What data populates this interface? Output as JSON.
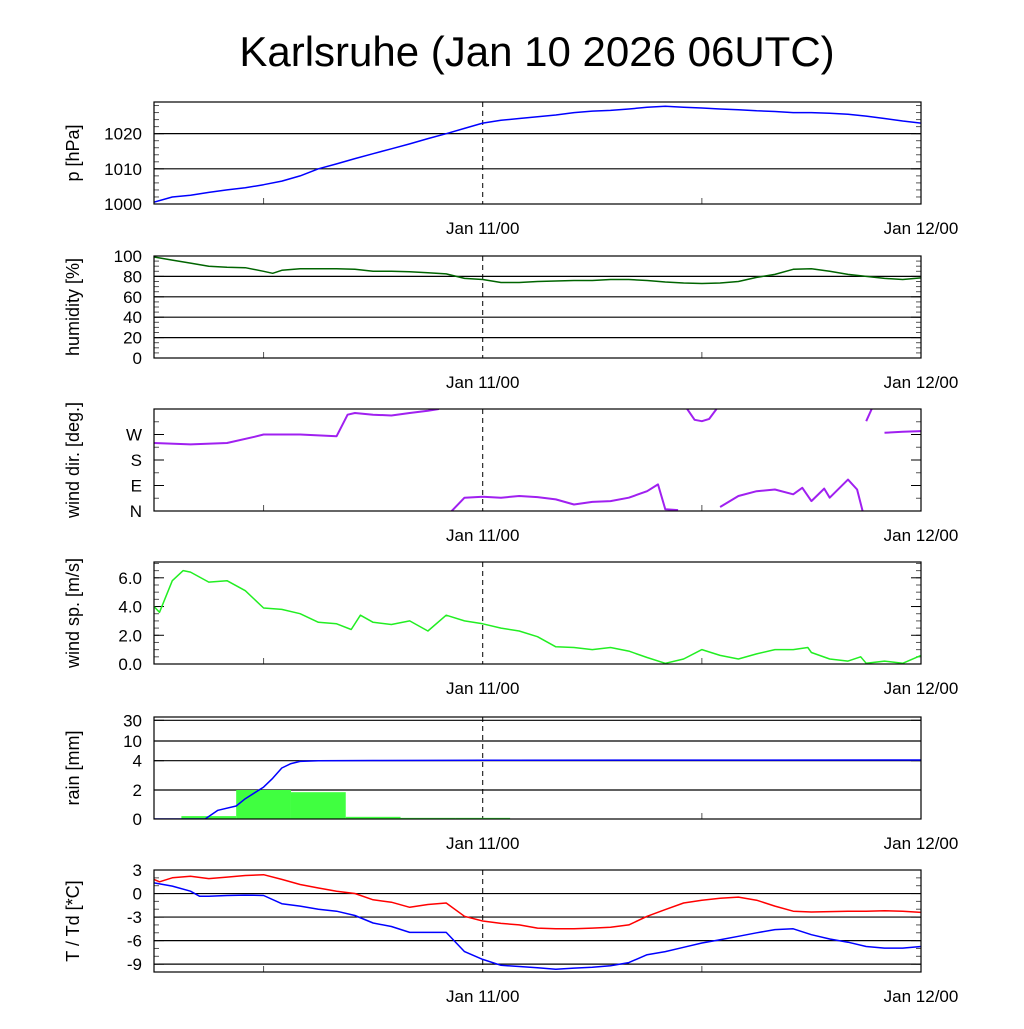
{
  "title": "Karlsruhe (Jan 10 2026 06UTC)",
  "x_axis": {
    "unit": "hours since Jan 10 06UTC",
    "range": [
      0,
      42
    ],
    "labels": [
      {
        "hour": 18,
        "text": "Jan 11/00"
      },
      {
        "hour": 42,
        "text": "Jan 12/00"
      }
    ],
    "minor_hours": [
      6,
      30
    ],
    "dashed_marker_hour": 18
  },
  "chart_data": [
    {
      "id": "pressure",
      "type": "line",
      "ylabel": "p [hPa]",
      "ylim": [
        1000,
        1029
      ],
      "yticks": [
        {
          "v": 1000,
          "t": "1000"
        },
        {
          "v": 1010,
          "t": "1010"
        },
        {
          "v": 1020,
          "t": "1020"
        }
      ],
      "grid": [
        1010,
        1020
      ],
      "minor_step": 2,
      "series": [
        {
          "name": "pressure",
          "color": "#0000ff",
          "x": [
            0,
            1,
            2,
            3,
            4,
            5,
            6,
            7,
            8,
            9,
            10,
            11,
            12,
            13,
            14,
            15,
            16,
            17,
            18,
            19,
            20,
            21,
            22,
            23,
            24,
            25,
            26,
            27,
            28,
            29,
            30,
            31,
            32,
            33,
            34,
            35,
            36,
            37,
            38,
            39,
            40,
            41,
            42
          ],
          "y": [
            1000.5,
            1002,
            1002.5,
            1003.3,
            1004,
            1004.6,
            1005.5,
            1006.5,
            1008,
            1010,
            1011.4,
            1012.9,
            1014.3,
            1015.7,
            1017.1,
            1018.6,
            1020,
            1021.5,
            1023,
            1023.8,
            1024.3,
            1024.8,
            1025.3,
            1026,
            1026.4,
            1026.6,
            1027,
            1027.5,
            1027.8,
            1027.5,
            1027.3,
            1027,
            1026.8,
            1026.5,
            1026.3,
            1026,
            1026,
            1025.8,
            1025.5,
            1025,
            1024.3,
            1023.6,
            1023
          ]
        }
      ]
    },
    {
      "id": "humidity",
      "type": "line",
      "ylabel": "humidity [%]",
      "ylim": [
        0,
        100
      ],
      "yticks": [
        {
          "v": 0,
          "t": "0"
        },
        {
          "v": 20,
          "t": "20"
        },
        {
          "v": 40,
          "t": "40"
        },
        {
          "v": 60,
          "t": "60"
        },
        {
          "v": 80,
          "t": "80"
        },
        {
          "v": 100,
          "t": "100"
        }
      ],
      "grid": [
        20,
        40,
        60,
        80
      ],
      "minor_step": 5,
      "series": [
        {
          "name": "humidity",
          "color": "#006400",
          "x": [
            0,
            1,
            2,
            3,
            4,
            5,
            6,
            6.5,
            7,
            8,
            9,
            10,
            11,
            12,
            13,
            14,
            15,
            16,
            17,
            18,
            19,
            20,
            21,
            22,
            23,
            24,
            25,
            26,
            27,
            28,
            29,
            30,
            31,
            32,
            33,
            34,
            35,
            36,
            37,
            38,
            39,
            40,
            41,
            42
          ],
          "y": [
            99,
            96,
            93,
            90,
            89,
            88.5,
            85,
            83,
            86,
            87.5,
            87.5,
            87.5,
            87,
            85,
            85,
            84.5,
            83.5,
            82.5,
            78,
            77,
            74,
            74,
            75,
            75.5,
            76,
            76,
            77,
            77,
            76,
            74.5,
            73.5,
            73,
            73.5,
            75,
            79,
            82,
            87,
            87.5,
            85,
            82,
            80,
            78,
            77,
            78.5
          ]
        }
      ]
    },
    {
      "id": "wind_direction",
      "type": "scatter",
      "ylabel": "wind dir. [deg.]",
      "ylim": [
        0,
        360
      ],
      "yticks": [
        {
          "v": 0,
          "t": "N"
        },
        {
          "v": 90,
          "t": "E"
        },
        {
          "v": 180,
          "t": "S"
        },
        {
          "v": 270,
          "t": "W"
        }
      ],
      "grid": [],
      "minor_step": 45,
      "series": [
        {
          "name": "wind direction",
          "color": "#a020f0",
          "x": [
            0,
            2,
            4,
            5.5,
            6,
            8,
            10,
            10.6,
            11,
            12,
            13,
            14,
            15,
            15.6,
            16.3,
            17,
            18,
            19,
            20,
            21,
            22,
            23,
            24,
            25,
            26,
            27,
            27.6,
            28,
            28.7,
            29.2,
            29.6,
            30,
            30.4,
            30.8,
            31,
            32,
            33,
            34,
            35,
            35.5,
            36,
            36.7,
            37,
            38,
            38.5,
            38.8,
            39,
            39.3,
            39.6,
            40,
            41,
            42
          ],
          "y": [
            240,
            235,
            240,
            262,
            270,
            270,
            264,
            340,
            346,
            340,
            337,
            346,
            354,
            360,
            0,
            47,
            50,
            47,
            53,
            49,
            41,
            23,
            32,
            35,
            47,
            70,
            94,
            6,
            3,
            360,
            322,
            317,
            325,
            360,
            14,
            53,
            70,
            76,
            59,
            82,
            35,
            79,
            47,
            111,
            76,
            0,
            317,
            360,
            14,
            276,
            280,
            282
          ]
        }
      ]
    },
    {
      "id": "wind_speed",
      "type": "line",
      "ylabel": "wind sp. [m/s]",
      "ylim": [
        0,
        7.1
      ],
      "yticks": [
        {
          "v": 0,
          "t": "0.0"
        },
        {
          "v": 2,
          "t": "2.0"
        },
        {
          "v": 4,
          "t": "4.0"
        },
        {
          "v": 6,
          "t": "6.0"
        }
      ],
      "grid": [],
      "minor_step": 0.5,
      "series": [
        {
          "name": "wind speed",
          "color": "#22ee22",
          "x": [
            0,
            0.3,
            1,
            1.6,
            2,
            3,
            4,
            5,
            6,
            7,
            8,
            9,
            10,
            10.8,
            11.3,
            12,
            13,
            14,
            15,
            16,
            17,
            18,
            19,
            20,
            21,
            22,
            23,
            24,
            25,
            26,
            27,
            28,
            29,
            30,
            31,
            32,
            33,
            34,
            35,
            35.8,
            36,
            37,
            38,
            38.7,
            39,
            40,
            41,
            42
          ],
          "y": [
            4.0,
            3.6,
            5.8,
            6.5,
            6.4,
            5.7,
            5.8,
            5.1,
            3.9,
            3.8,
            3.5,
            2.9,
            2.8,
            2.4,
            3.4,
            2.9,
            2.75,
            3.0,
            2.3,
            3.4,
            3.0,
            2.8,
            2.5,
            2.3,
            1.9,
            1.2,
            1.15,
            1.0,
            1.15,
            0.9,
            0.45,
            0.05,
            0.35,
            1.0,
            0.6,
            0.35,
            0.7,
            1.0,
            1.0,
            1.15,
            0.8,
            0.35,
            0.2,
            0.5,
            0.05,
            0.2,
            0.05,
            0.6
          ]
        }
      ]
    },
    {
      "id": "rain",
      "type": "bar+line",
      "ylabel": "rain [mm]",
      "ylim": [
        0,
        30
      ],
      "yticks": [
        {
          "v": 0,
          "t": "0"
        },
        {
          "v": 2,
          "t": "2"
        },
        {
          "v": 4,
          "t": "4"
        },
        {
          "v": 10,
          "t": "10"
        },
        {
          "v": 30,
          "t": "30"
        }
      ],
      "grid": [
        2,
        4,
        10,
        30
      ],
      "bars": {
        "name": "rain per interval",
        "color": "#40ff40",
        "intervals": [
          [
            1.5,
            4.5,
            0.2
          ],
          [
            4.5,
            7.5,
            2.0
          ],
          [
            7.5,
            10.5,
            1.85
          ],
          [
            10.5,
            13.5,
            0.15
          ],
          [
            13.5,
            16.5,
            0.08
          ],
          [
            16.5,
            19.5,
            0.08
          ]
        ]
      },
      "series": [
        {
          "name": "accumulated rain",
          "color": "#0000ff",
          "x": [
            0,
            2.8,
            3.5,
            4.5,
            5,
            6,
            6.5,
            7,
            7.5,
            8,
            9,
            12,
            18,
            42
          ],
          "y": [
            0,
            0,
            0.6,
            0.9,
            1.4,
            2.2,
            2.8,
            3.5,
            3.8,
            3.95,
            4.0,
            4.05,
            4.15,
            4.2
          ]
        }
      ]
    },
    {
      "id": "temperature",
      "type": "line",
      "ylabel": "T / Td [*C]",
      "ylim": [
        -10,
        3
      ],
      "yticks": [
        {
          "v": -9,
          "t": "-9"
        },
        {
          "v": -6,
          "t": "-6"
        },
        {
          "v": -3,
          "t": "-3"
        },
        {
          "v": 0,
          "t": "0"
        },
        {
          "v": 3,
          "t": "3"
        }
      ],
      "grid": [
        -9,
        -6,
        -3,
        0
      ],
      "minor_step": 1,
      "series": [
        {
          "name": "T",
          "color": "#ff0000",
          "x": [
            0,
            0.3,
            1,
            2,
            3,
            4,
            5,
            6,
            7,
            8,
            9,
            10,
            11,
            12,
            13,
            14,
            15,
            16,
            17,
            18,
            19,
            20,
            21,
            22,
            23,
            24,
            25,
            26,
            27,
            28,
            29,
            30,
            31,
            32,
            33,
            34,
            35,
            36,
            37,
            38,
            39,
            40,
            41,
            42
          ],
          "y": [
            1.8,
            1.5,
            2.0,
            2.2,
            1.9,
            2.1,
            2.3,
            2.4,
            1.8,
            1.15,
            0.7,
            0.3,
            0,
            -0.8,
            -1.1,
            -1.75,
            -1.4,
            -1.2,
            -2.9,
            -3.5,
            -3.8,
            -4.0,
            -4.4,
            -4.5,
            -4.5,
            -4.4,
            -4.3,
            -4.0,
            -2.9,
            -2.05,
            -1.2,
            -0.85,
            -0.6,
            -0.45,
            -0.85,
            -1.6,
            -2.25,
            -2.35,
            -2.3,
            -2.25,
            -2.25,
            -2.2,
            -2.25,
            -2.4
          ]
        },
        {
          "name": "Td",
          "color": "#0000ff",
          "x": [
            0,
            1,
            2,
            2.5,
            3,
            4,
            5,
            6,
            7,
            8,
            9,
            10,
            11,
            12,
            13,
            14,
            15,
            16,
            17,
            18,
            19,
            20,
            21,
            22,
            23,
            24,
            25,
            26,
            27,
            28,
            29,
            30,
            31,
            32,
            33,
            34,
            35,
            36,
            37,
            38,
            39,
            40,
            41,
            42
          ],
          "y": [
            1.35,
            0.95,
            0.3,
            -0.35,
            -0.35,
            -0.25,
            -0.2,
            -0.25,
            -1.3,
            -1.6,
            -2.0,
            -2.25,
            -2.8,
            -3.75,
            -4.2,
            -4.95,
            -4.95,
            -4.95,
            -7.4,
            -8.4,
            -9.15,
            -9.3,
            -9.45,
            -9.65,
            -9.5,
            -9.4,
            -9.2,
            -8.8,
            -7.8,
            -7.4,
            -6.85,
            -6.3,
            -5.9,
            -5.45,
            -5.0,
            -4.6,
            -4.5,
            -5.25,
            -5.8,
            -6.2,
            -6.75,
            -6.95,
            -6.95,
            -6.75
          ]
        }
      ]
    }
  ]
}
